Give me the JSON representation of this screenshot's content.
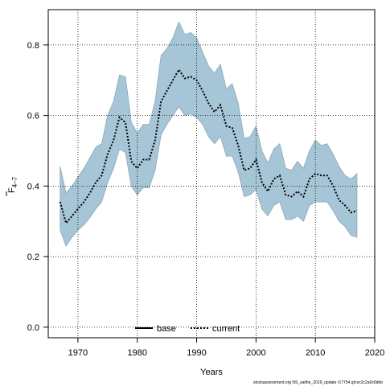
{
  "chart_data": {
    "type": "line",
    "xlabel": "Years",
    "ylabel_main": "F",
    "ylabel_sub": "4–7",
    "xlim": [
      1965,
      2020
    ],
    "ylim": [
      -0.03,
      0.9
    ],
    "x_ticks": [
      1970,
      1980,
      1990,
      2000,
      2010,
      2020
    ],
    "y_ticks": [
      0.0,
      0.2,
      0.4,
      0.6,
      0.8
    ],
    "x_tick_labels": [
      "1970",
      "1980",
      "1990",
      "2000",
      "2010",
      "2020"
    ],
    "y_tick_labels": [
      "0.0",
      "0.2",
      "0.4",
      "0.6",
      "0.8"
    ],
    "grid": true,
    "legend_placement": "bottom-center",
    "legend": [
      {
        "name": "base",
        "style": "solid",
        "color": "#000000"
      },
      {
        "name": "current",
        "style": "dotted",
        "color": "#000000"
      }
    ],
    "band_color": "#a6c6d8",
    "band_edge_color": "#8aa6b4",
    "footer": "stockassessment.org NS_saithe_2019_update r17754 git:ec2c2a0c6dde",
    "x": [
      1967,
      1968,
      1969,
      1970,
      1971,
      1972,
      1973,
      1974,
      1975,
      1976,
      1977,
      1978,
      1979,
      1980,
      1981,
      1982,
      1983,
      1984,
      1985,
      1986,
      1987,
      1988,
      1989,
      1990,
      1991,
      1992,
      1993,
      1994,
      1995,
      1996,
      1997,
      1998,
      1999,
      2000,
      2001,
      2002,
      2003,
      2004,
      2005,
      2006,
      2007,
      2008,
      2009,
      2010,
      2011,
      2012,
      2013,
      2014,
      2015,
      2016,
      2017
    ],
    "series": [
      {
        "name": "current",
        "values": [
          0.355,
          0.295,
          0.315,
          0.335,
          0.355,
          0.38,
          0.41,
          0.43,
          0.49,
          0.53,
          0.595,
          0.58,
          0.47,
          0.45,
          0.475,
          0.475,
          0.53,
          0.64,
          0.67,
          0.7,
          0.73,
          0.705,
          0.71,
          0.7,
          0.67,
          0.635,
          0.61,
          0.63,
          0.57,
          0.565,
          0.515,
          0.445,
          0.45,
          0.475,
          0.41,
          0.385,
          0.42,
          0.43,
          0.375,
          0.37,
          0.385,
          0.37,
          0.42,
          0.435,
          0.43,
          0.43,
          0.4,
          0.36,
          0.345,
          0.325,
          0.33
        ]
      },
      {
        "name": "upper",
        "values": [
          0.455,
          0.38,
          0.4,
          0.425,
          0.45,
          0.48,
          0.51,
          0.52,
          0.6,
          0.64,
          0.715,
          0.71,
          0.58,
          0.55,
          0.575,
          0.575,
          0.64,
          0.77,
          0.79,
          0.82,
          0.865,
          0.83,
          0.835,
          0.82,
          0.78,
          0.74,
          0.72,
          0.745,
          0.675,
          0.69,
          0.635,
          0.535,
          0.54,
          0.57,
          0.5,
          0.465,
          0.505,
          0.52,
          0.45,
          0.445,
          0.47,
          0.45,
          0.5,
          0.53,
          0.515,
          0.52,
          0.49,
          0.455,
          0.43,
          0.42,
          0.435
        ]
      },
      {
        "name": "lower",
        "values": [
          0.275,
          0.23,
          0.255,
          0.275,
          0.29,
          0.31,
          0.335,
          0.355,
          0.41,
          0.45,
          0.505,
          0.495,
          0.4,
          0.375,
          0.395,
          0.395,
          0.445,
          0.545,
          0.575,
          0.6,
          0.625,
          0.6,
          0.605,
          0.595,
          0.575,
          0.54,
          0.52,
          0.54,
          0.485,
          0.485,
          0.44,
          0.37,
          0.375,
          0.39,
          0.335,
          0.315,
          0.345,
          0.355,
          0.305,
          0.305,
          0.315,
          0.3,
          0.345,
          0.355,
          0.355,
          0.355,
          0.33,
          0.3,
          0.285,
          0.26,
          0.255
        ]
      }
    ]
  }
}
